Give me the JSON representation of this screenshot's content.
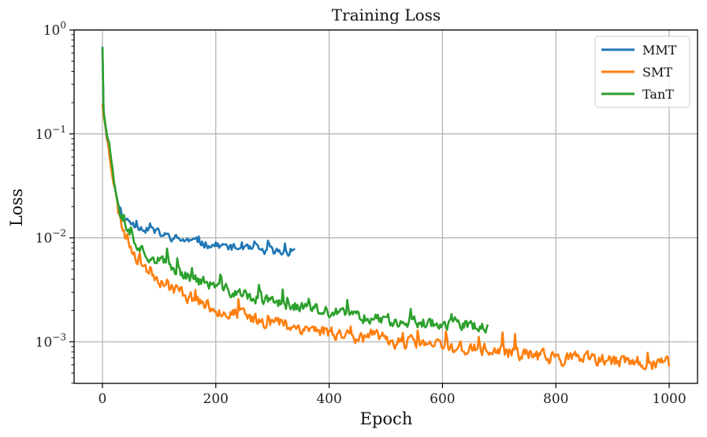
{
  "chart_data": {
    "type": "line",
    "title": "Training Loss",
    "xlabel": "Epoch",
    "ylabel": "Loss",
    "xlim": [
      -50,
      1050
    ],
    "ylog": true,
    "ylim_exp": [
      -3.4,
      0
    ],
    "grid": true,
    "legend_position": "top-right",
    "x_ticks": [
      0,
      200,
      400,
      600,
      800,
      1000
    ],
    "y_ticks": [
      {
        "exp": 0,
        "mantissa": "10",
        "power": "0"
      },
      {
        "exp": -1,
        "mantissa": "10",
        "power": "−1"
      },
      {
        "exp": -2,
        "mantissa": "10",
        "power": "−2"
      },
      {
        "exp": -3,
        "mantissa": "10",
        "power": "−3"
      }
    ],
    "series": [
      {
        "name": "MMT",
        "color": "#1f77b4",
        "x": [
          0,
          2,
          5,
          10,
          15,
          20,
          25,
          30,
          35,
          40,
          45,
          50,
          60,
          70,
          80,
          90,
          100,
          110,
          120,
          130,
          140,
          150,
          160,
          170,
          180,
          190,
          200,
          210,
          220,
          230,
          240,
          250,
          260,
          270,
          280,
          290,
          300,
          310,
          320,
          330,
          340
        ],
        "y": [
          0.7,
          0.17,
          0.12,
          0.08,
          0.05,
          0.035,
          0.025,
          0.019,
          0.016,
          0.015,
          0.0145,
          0.014,
          0.013,
          0.0125,
          0.012,
          0.0115,
          0.011,
          0.0105,
          0.0102,
          0.0098,
          0.0096,
          0.0094,
          0.0092,
          0.009,
          0.0088,
          0.0086,
          0.0085,
          0.0084,
          0.0082,
          0.008,
          0.0079,
          0.0078,
          0.0077,
          0.0076,
          0.0075,
          0.0074,
          0.0074,
          0.0073,
          0.0073,
          0.0072,
          0.0072
        ],
        "noise": 0.06,
        "seed": 11
      },
      {
        "name": "SMT",
        "color": "#ff7f0e",
        "x": [
          0,
          2,
          5,
          10,
          15,
          20,
          25,
          30,
          40,
          50,
          60,
          70,
          80,
          90,
          100,
          120,
          140,
          160,
          180,
          200,
          220,
          240,
          260,
          280,
          300,
          320,
          340,
          360,
          380,
          400,
          420,
          440,
          460,
          480,
          500,
          520,
          540,
          560,
          580,
          600,
          620,
          640,
          660,
          680,
          700,
          720,
          740,
          760,
          780,
          800,
          820,
          840,
          860,
          880,
          900,
          920,
          940,
          960,
          980,
          1000
        ],
        "y": [
          0.2,
          0.15,
          0.12,
          0.09,
          0.055,
          0.035,
          0.022,
          0.016,
          0.011,
          0.0085,
          0.0068,
          0.0058,
          0.005,
          0.0045,
          0.0041,
          0.0034,
          0.003,
          0.0026,
          0.0023,
          0.0021,
          0.0019,
          0.0018,
          0.0017,
          0.0016,
          0.00155,
          0.0015,
          0.0014,
          0.00135,
          0.0013,
          0.00125,
          0.0012,
          0.00115,
          0.00112,
          0.0011,
          0.00105,
          0.001,
          0.00097,
          0.00095,
          0.00092,
          0.0009,
          0.00088,
          0.00086,
          0.00084,
          0.00082,
          0.0008,
          0.00078,
          0.00076,
          0.00074,
          0.00072,
          0.0007,
          0.00069,
          0.00068,
          0.00067,
          0.00066,
          0.00065,
          0.00064,
          0.00063,
          0.00062,
          0.00062,
          0.0006
        ],
        "noise": 0.1,
        "seed": 23
      },
      {
        "name": "TanT",
        "color": "#2ca02c",
        "x": [
          0,
          2,
          5,
          10,
          15,
          20,
          25,
          30,
          40,
          50,
          60,
          70,
          80,
          90,
          100,
          120,
          140,
          160,
          180,
          200,
          220,
          240,
          260,
          280,
          300,
          320,
          340,
          360,
          380,
          400,
          420,
          440,
          460,
          480,
          500,
          520,
          540,
          560,
          580,
          600,
          620,
          640,
          660,
          680
        ],
        "y": [
          0.7,
          0.18,
          0.13,
          0.09,
          0.06,
          0.04,
          0.027,
          0.02,
          0.013,
          0.0105,
          0.009,
          0.0078,
          0.007,
          0.0064,
          0.006,
          0.0052,
          0.0046,
          0.0041,
          0.0037,
          0.0034,
          0.0031,
          0.0029,
          0.0027,
          0.0025,
          0.0024,
          0.0023,
          0.0022,
          0.0021,
          0.002,
          0.0019,
          0.00185,
          0.0018,
          0.00175,
          0.0017,
          0.00165,
          0.0016,
          0.00158,
          0.00155,
          0.00152,
          0.0015,
          0.00148,
          0.00145,
          0.00142,
          0.0014
        ],
        "noise": 0.09,
        "seed": 37
      }
    ]
  }
}
